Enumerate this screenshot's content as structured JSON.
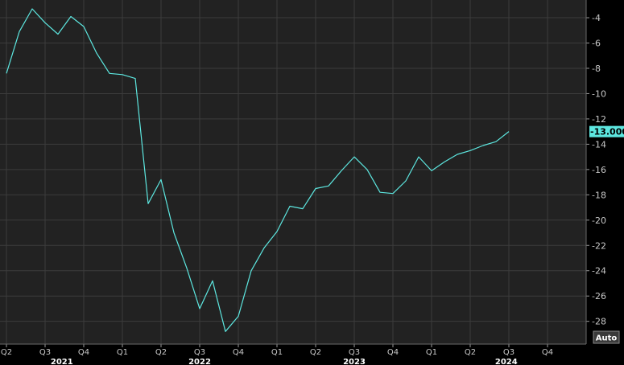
{
  "chart_data": {
    "type": "line",
    "title": "",
    "xlabel": "",
    "ylabel": "",
    "ylim": [
      -29.8,
      -2.6
    ],
    "xlim": [
      -0.5,
      45
    ],
    "y_ticks": [
      -4,
      -6,
      -8,
      -10,
      -12,
      -14,
      -16,
      -18,
      -20,
      -22,
      -24,
      -26,
      -28
    ],
    "y_tick_labels": [
      "-4",
      "-6",
      "-8",
      "-10",
      "-12",
      "-14",
      "-16",
      "-18",
      "-20",
      "-22",
      "-24",
      "-26",
      "-28"
    ],
    "quarter_ticks": [
      {
        "label": "Q2",
        "pos": 0
      },
      {
        "label": "Q3",
        "pos": 3
      },
      {
        "label": "Q4",
        "pos": 6
      },
      {
        "label": "Q1",
        "pos": 9
      },
      {
        "label": "Q2",
        "pos": 12
      },
      {
        "label": "Q3",
        "pos": 15
      },
      {
        "label": "Q4",
        "pos": 18
      },
      {
        "label": "Q1",
        "pos": 21
      },
      {
        "label": "Q2",
        "pos": 24
      },
      {
        "label": "Q3",
        "pos": 27
      },
      {
        "label": "Q4",
        "pos": 30
      },
      {
        "label": "Q1",
        "pos": 33
      },
      {
        "label": "Q2",
        "pos": 36
      },
      {
        "label": "Q3",
        "pos": 39
      },
      {
        "label": "Q4",
        "pos": 42
      }
    ],
    "year_labels": [
      {
        "label": "2021",
        "pos": 4.3
      },
      {
        "label": "2022",
        "pos": 15
      },
      {
        "label": "2023",
        "pos": 27
      },
      {
        "label": "2024",
        "pos": 38.8
      }
    ],
    "series": [
      {
        "color": "#5de7e0",
        "x": [
          0,
          1,
          2,
          3,
          4,
          5,
          6,
          7,
          8,
          9,
          10,
          11,
          12,
          13,
          14,
          15,
          16,
          17,
          18,
          19,
          20,
          21,
          22,
          23,
          24,
          25,
          26,
          27,
          28,
          29,
          30,
          31,
          32,
          33,
          34,
          35,
          36,
          37,
          38,
          39
        ],
        "values": [
          -8.4,
          -5.1,
          -3.3,
          -4.4,
          -5.3,
          -3.9,
          -4.7,
          -6.8,
          -8.4,
          -8.5,
          -8.8,
          -18.7,
          -16.8,
          -21.0,
          -23.8,
          -27.0,
          -24.8,
          -28.8,
          -27.6,
          -24.0,
          -22.2,
          -20.9,
          -18.9,
          -19.1,
          -17.5,
          -17.3,
          -16.1,
          -15.0,
          -16.0,
          -17.8,
          -17.9,
          -16.9,
          -15.0,
          -16.1,
          -15.4,
          -14.8,
          -14.5,
          -14.1,
          -13.8,
          -13.0
        ]
      }
    ],
    "last_value_label": "-13.000",
    "scale_button": "Auto",
    "colors": {
      "background": "#000000",
      "plot_area": "#222222",
      "grid": "#3c3c3c",
      "line": "#5de7e0",
      "last_value_badge": "#5de7e0"
    }
  }
}
